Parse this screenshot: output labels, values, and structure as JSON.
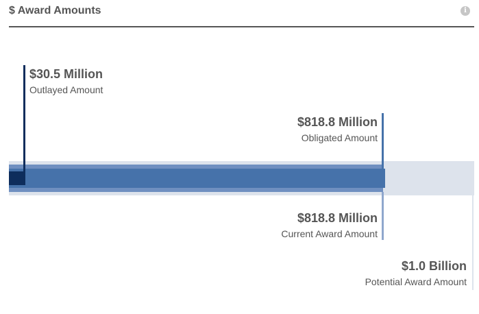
{
  "header": {
    "title": "$ Award Amounts",
    "info_icon": "info-icon"
  },
  "colors": {
    "outlayed": "#0e2d5c",
    "obligated": "#4672aa",
    "current": "#6f8fc0",
    "potential": "#dde3ec"
  },
  "amounts": {
    "outlayed": {
      "value": "$30.5 Million",
      "label": "Outlayed Amount"
    },
    "obligated": {
      "value": "$818.8 Million",
      "label": "Obligated Amount"
    },
    "current": {
      "value": "$818.8 Million",
      "label": "Current Award Amount"
    },
    "potential": {
      "value": "$1.0 Billion",
      "label": "Potential Award Amount"
    }
  }
}
